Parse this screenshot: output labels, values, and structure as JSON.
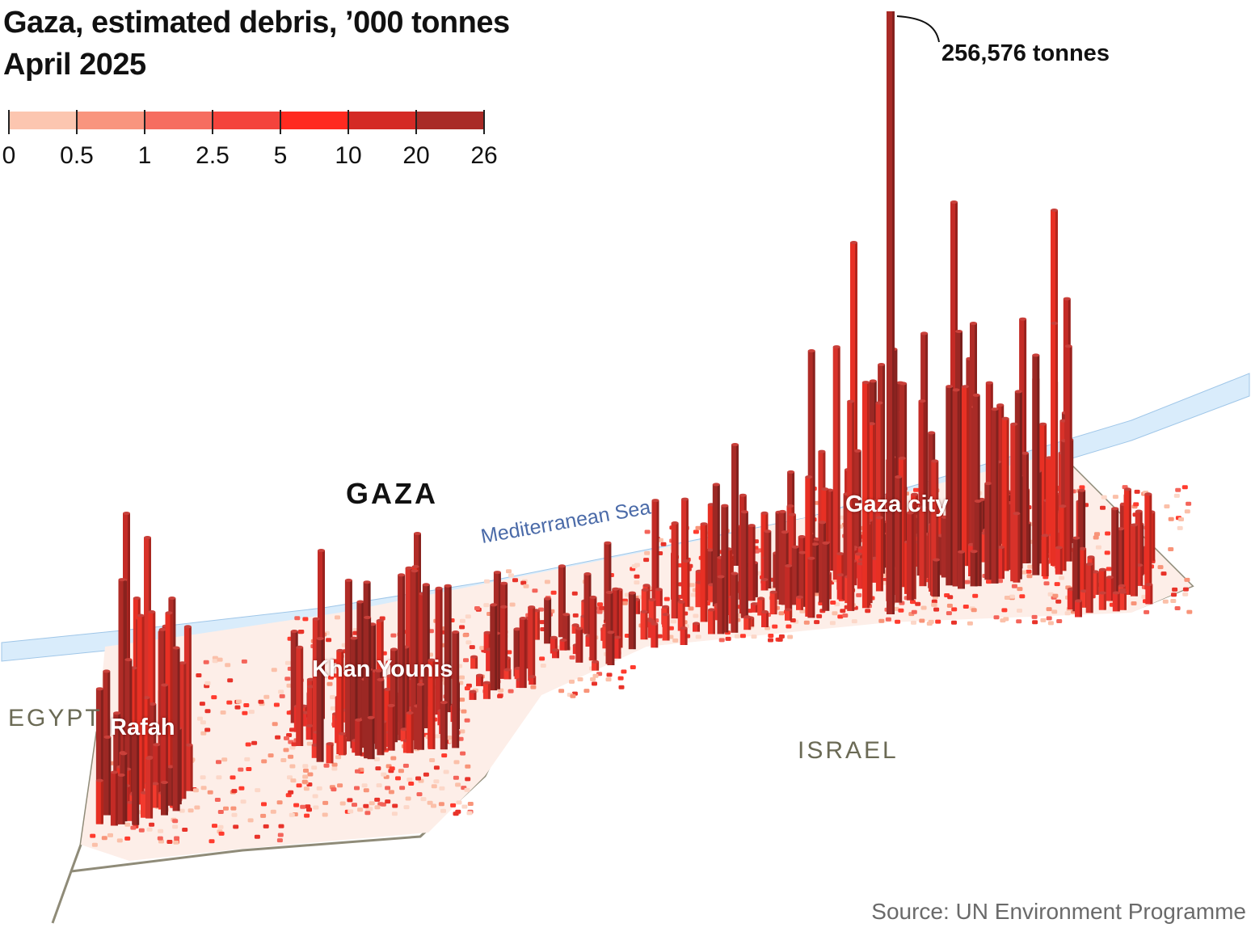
{
  "header": {
    "title_line1": "Gaza, estimated debris, ’000 tonnes",
    "title_line2": "April 2025"
  },
  "legend": {
    "labels": [
      "0",
      "0.5",
      "1",
      "2.5",
      "5",
      "10",
      "20",
      "26"
    ],
    "colors": [
      "#fcc6b0",
      "#f9957e",
      "#f66d60",
      "#f4433c",
      "#ff2a20",
      "#d42a25",
      "#a92b27"
    ]
  },
  "map": {
    "region_label": "GAZA",
    "sea_label": "Mediterranean Sea",
    "country_egypt": "EGYPT",
    "country_israel": "ISRAEL",
    "cities": [
      "Rafah",
      "Khan Younis",
      "Gaza city"
    ],
    "max_annotation": "256,576 tonnes",
    "colors": {
      "sea": "#d9ecfb",
      "border": "#8f8b78",
      "bar_dark": "#a92b27",
      "bar_mid": "#e83024",
      "ground_light": "#fcc6b0"
    }
  },
  "footer": {
    "source": "Source: UN Environment Programme"
  }
}
